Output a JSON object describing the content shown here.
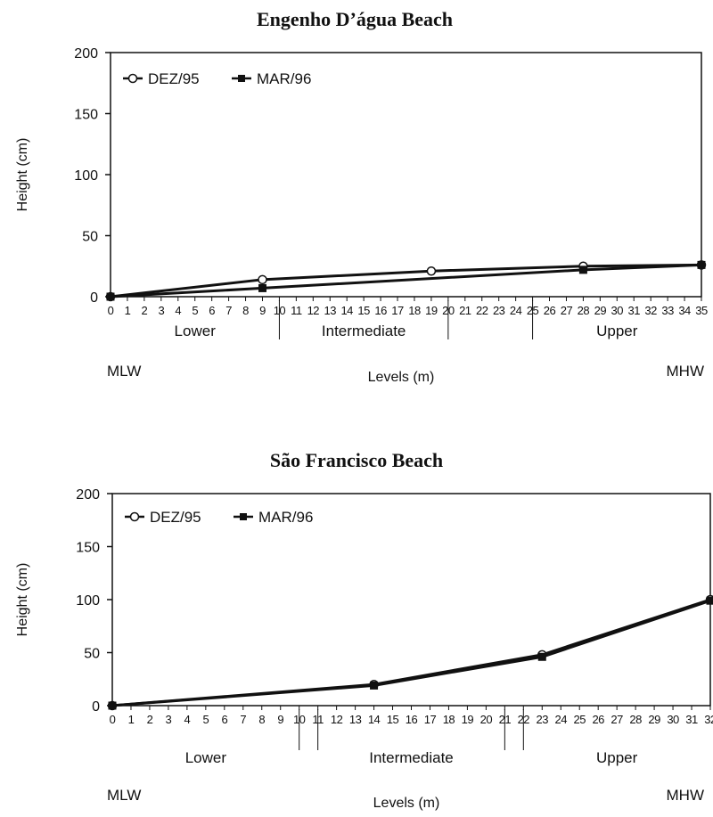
{
  "chart_data": [
    {
      "type": "line",
      "title": "Engenho D’água Beach",
      "ylabel": "Height (cm)",
      "xlabel": "Levels (m)",
      "ylim": [
        0,
        200
      ],
      "yticks": [
        "0",
        "50",
        "100",
        "150",
        "200"
      ],
      "xlim": [
        0,
        35
      ],
      "xticks": [
        "0",
        "1",
        "2",
        "3",
        "4",
        "5",
        "6",
        "7",
        "8",
        "9",
        "10",
        "11",
        "12",
        "13",
        "14",
        "15",
        "16",
        "17",
        "18",
        "19",
        "20",
        "21",
        "22",
        "23",
        "24",
        "25",
        "26",
        "27",
        "28",
        "29",
        "30",
        "31",
        "32",
        "33",
        "34",
        "35"
      ],
      "zones": [
        {
          "label": "Lower",
          "start": 0,
          "end": 10
        },
        {
          "label": "Intermediate",
          "start": 10,
          "end": 20
        },
        {
          "label": "Upper",
          "start": 25,
          "end": 35
        }
      ],
      "zone_boundaries": [
        10,
        20,
        25
      ],
      "left_note": "MLW",
      "right_note": "MHW",
      "legend_position": "top-left",
      "series": [
        {
          "name": "DEZ/95",
          "marker": "open-circle",
          "x": [
            0,
            9,
            19,
            28,
            35
          ],
          "y": [
            0,
            14,
            21,
            25,
            26
          ]
        },
        {
          "name": "MAR/96",
          "marker": "filled-square",
          "x": [
            0,
            9,
            28,
            35
          ],
          "y": [
            0,
            7,
            22,
            26
          ]
        }
      ]
    },
    {
      "type": "line",
      "title": "São Francisco Beach",
      "ylabel": "Height (cm)",
      "xlabel": "Levels (m)",
      "ylim": [
        0,
        200
      ],
      "yticks": [
        "0",
        "50",
        "100",
        "150",
        "200"
      ],
      "xlim": [
        0,
        32
      ],
      "xticks": [
        "0",
        "1",
        "2",
        "3",
        "4",
        "5",
        "6",
        "7",
        "8",
        "9",
        "10",
        "11",
        "12",
        "13",
        "14",
        "15",
        "16",
        "17",
        "18",
        "19",
        "20",
        "21",
        "22",
        "23",
        "24",
        "25",
        "26",
        "27",
        "28",
        "29",
        "30",
        "31",
        "32"
      ],
      "zones": [
        {
          "label": "Lower",
          "start": 0,
          "end": 10
        },
        {
          "label": "Intermediate",
          "start": 11,
          "end": 21
        },
        {
          "label": "Upper",
          "start": 22,
          "end": 32
        }
      ],
      "zone_boundaries": [
        10,
        11,
        21,
        22
      ],
      "left_note": "MLW",
      "right_note": "MHW",
      "legend_position": "top-left",
      "series": [
        {
          "name": "DEZ/95",
          "marker": "open-circle",
          "x": [
            0,
            14,
            23,
            32
          ],
          "y": [
            0,
            20,
            48,
            100
          ]
        },
        {
          "name": "MAR/96",
          "marker": "filled-square",
          "x": [
            0,
            14,
            23,
            32
          ],
          "y": [
            0,
            19,
            46,
            99
          ]
        }
      ]
    }
  ]
}
